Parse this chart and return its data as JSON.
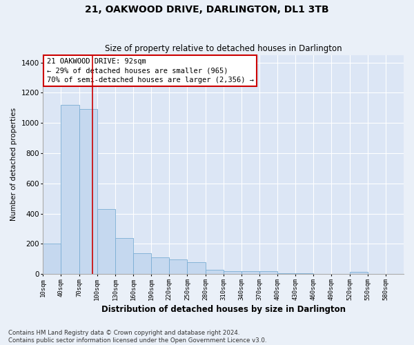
{
  "title": "21, OAKWOOD DRIVE, DARLINGTON, DL1 3TB",
  "subtitle": "Size of property relative to detached houses in Darlington",
  "xlabel": "Distribution of detached houses by size in Darlington",
  "ylabel": "Number of detached properties",
  "bar_color": "#c5d8ef",
  "bar_edge_color": "#7aadd4",
  "background_color": "#dce6f5",
  "fig_background_color": "#eaf0f8",
  "grid_color": "#ffffff",
  "annotation_text": "21 OAKWOOD DRIVE: 92sqm\n← 29% of detached houses are smaller (965)\n70% of semi-detached houses are larger (2,356) →",
  "vline_color": "#cc0000",
  "vline_x": 92,
  "bin_edges": [
    10,
    40,
    70,
    100,
    130,
    160,
    190,
    220,
    250,
    280,
    310,
    340,
    370,
    400,
    430,
    460,
    490,
    520,
    550,
    580,
    610
  ],
  "bin_counts": [
    200,
    1120,
    1090,
    430,
    240,
    140,
    110,
    95,
    80,
    30,
    20,
    20,
    20,
    5,
    5,
    0,
    0,
    15,
    0,
    0
  ],
  "ylim": [
    0,
    1450
  ],
  "yticks": [
    0,
    200,
    400,
    600,
    800,
    1000,
    1200,
    1400
  ],
  "footer_text": "Contains HM Land Registry data © Crown copyright and database right 2024.\nContains public sector information licensed under the Open Government Licence v3.0.",
  "annotation_box_facecolor": "#ffffff",
  "annotation_box_edgecolor": "#cc0000",
  "title_fontsize": 10,
  "subtitle_fontsize": 8.5,
  "ylabel_fontsize": 7.5,
  "xlabel_fontsize": 8.5,
  "xtick_fontsize": 6.5,
  "ytick_fontsize": 7.5,
  "annotation_fontsize": 7.5,
  "footer_fontsize": 6.2
}
